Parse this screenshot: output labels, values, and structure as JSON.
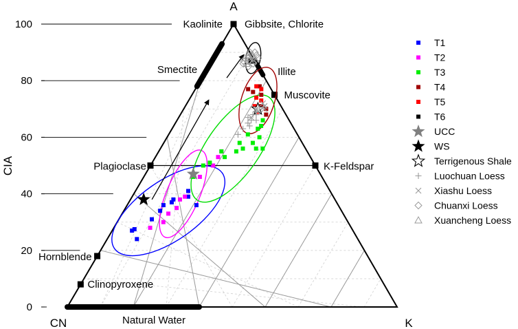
{
  "chart_data": {
    "type": "scatter",
    "subtype": "ternary",
    "vertices": {
      "top": "A",
      "left": "CN",
      "right": "K"
    },
    "ylabel": "CIA",
    "ylim": [
      0,
      100
    ],
    "yticks": [
      "0",
      "20",
      "40",
      "60",
      "80",
      "100"
    ],
    "legend_position": "right",
    "mineral_labels": [
      {
        "text": "Kaolinite",
        "cia": 100,
        "k": 0
      },
      {
        "text": "Gibbsite, Chlorite",
        "cia": 100,
        "k": 0
      },
      {
        "text": "Smectite",
        "cia": 84,
        "k": 0
      },
      {
        "text": "Illite",
        "cia": 84,
        "k": 16
      },
      {
        "text": "Muscovite",
        "cia": 75,
        "k": 25
      },
      {
        "text": "Plagioclase",
        "cia": 50,
        "k": 0
      },
      {
        "text": "K-Feldspar",
        "cia": 50,
        "k": 50
      },
      {
        "text": "Hornblende",
        "cia": 18,
        "k": 0
      },
      {
        "text": "Clinopyroxene",
        "cia": 8,
        "k": 0
      },
      {
        "text": "Natural Water",
        "cia": 0,
        "k": 0
      }
    ],
    "mineral_markers": [
      {
        "cia": 100,
        "k": 0
      },
      {
        "cia": 87,
        "k": 12
      },
      {
        "cia": 75,
        "k": 25
      },
      {
        "cia": 50,
        "k": 0
      },
      {
        "cia": 50,
        "k": 50
      },
      {
        "cia": 18,
        "k": 0
      },
      {
        "cia": 8,
        "k": 0
      }
    ],
    "series": [
      {
        "name": "T1",
        "color": "#0000ff",
        "marker": "square",
        "points": [
          [
            27,
            6
          ],
          [
            27.5,
            6.5
          ],
          [
            24,
            9
          ],
          [
            31,
            10
          ],
          [
            34,
            11
          ],
          [
            36,
            11
          ],
          [
            37,
            13
          ],
          [
            38,
            13
          ],
          [
            41,
            16
          ],
          [
            39,
            17
          ],
          [
            36,
            21
          ]
        ]
      },
      {
        "name": "T2",
        "color": "#ff00ff",
        "marker": "square",
        "points": [
          [
            28,
            11
          ],
          [
            30,
            14
          ],
          [
            33,
            14
          ],
          [
            35,
            15.5
          ],
          [
            38,
            15
          ],
          [
            39,
            16
          ],
          [
            46,
            17
          ],
          [
            50,
            19
          ],
          [
            53,
            19
          ],
          [
            55,
            19
          ]
        ]
      },
      {
        "name": "T3",
        "color": "#00ee00",
        "marker": "square",
        "points": [
          [
            46,
            15
          ],
          [
            50,
            16
          ],
          [
            51,
            17.5
          ],
          [
            55,
            19
          ],
          [
            53,
            21
          ],
          [
            55,
            23.5
          ],
          [
            58,
            23
          ],
          [
            61,
            24
          ],
          [
            56,
            25
          ],
          [
            58,
            27
          ],
          [
            56,
            29
          ],
          [
            56,
            31
          ],
          [
            60,
            28
          ],
          [
            63,
            26
          ],
          [
            64,
            26.5
          ],
          [
            66,
            26
          ]
        ]
      },
      {
        "name": "T4",
        "color": "#a00000",
        "marker": "square",
        "points": [
          [
            77,
            16
          ],
          [
            76,
            18
          ],
          [
            78,
            19
          ],
          [
            75,
            21
          ],
          [
            71,
            23
          ],
          [
            68,
            26
          ],
          [
            70,
            25
          ]
        ]
      },
      {
        "name": "T5",
        "color": "#ff0000",
        "marker": "square",
        "points": [
          [
            78,
            18
          ],
          [
            77,
            20
          ],
          [
            74,
            20
          ],
          [
            71,
            21
          ],
          [
            69,
            23
          ],
          [
            73,
            22
          ]
        ]
      },
      {
        "name": "T6",
        "color": "#000000",
        "marker": "square",
        "points": [
          [
            87,
            12
          ]
        ]
      },
      {
        "name": "UCC",
        "color": "#808080",
        "marker": "star",
        "points": [
          [
            47,
            14.5
          ]
        ]
      },
      {
        "name": "WS",
        "color": "#000000",
        "marker": "star",
        "points": [
          [
            38,
            4
          ]
        ]
      },
      {
        "name": "Terrigenous Shale",
        "color": "#000000",
        "marker": "star-open",
        "points": [
          [
            70,
            22.5
          ]
        ]
      },
      {
        "name": "Luochuan Loess",
        "color": "#9a9a9a",
        "marker": "plus",
        "points": [
          [
            61,
            21
          ],
          [
            63,
            21.5
          ],
          [
            65,
            22
          ],
          [
            66,
            22.5
          ],
          [
            67,
            21
          ],
          [
            68,
            22
          ],
          [
            68,
            23
          ],
          [
            69,
            22.5
          ],
          [
            70,
            23
          ],
          [
            64,
            23
          ],
          [
            66,
            24
          ]
        ]
      },
      {
        "name": "Xiashu Loess",
        "color": "#9a9a9a",
        "marker": "cross",
        "points": [
          [
            67,
            22
          ],
          [
            69,
            23
          ],
          [
            70,
            22
          ],
          [
            71,
            24
          ],
          [
            72,
            23
          ],
          [
            70,
            24.5
          ]
        ]
      },
      {
        "name": "Chuanxi Loess",
        "color": "#9a9a9a",
        "marker": "diamond",
        "points": [
          [
            86,
            10
          ],
          [
            87,
            11
          ],
          [
            88,
            10.5
          ],
          [
            89,
            11
          ],
          [
            88,
            12
          ],
          [
            86,
            13
          ],
          [
            87,
            13
          ],
          [
            89,
            12.5
          ],
          [
            90,
            11.5
          ],
          [
            85,
            12
          ],
          [
            87,
            9.5
          ],
          [
            88,
            13.5
          ],
          [
            90,
            10
          ]
        ]
      },
      {
        "name": "Xuancheng Loess",
        "color": "#9a9a9a",
        "marker": "triangle",
        "points": [
          [
            88,
            9.5
          ],
          [
            86,
            11
          ],
          [
            89,
            10
          ],
          [
            87,
            12.5
          ]
        ]
      }
    ],
    "ellipses": [
      {
        "series": "T1",
        "color": "#0000ff",
        "center": [
          34,
          13.5
        ],
        "rx_units": 21,
        "ry_units": 9,
        "tilt_deg": -35
      },
      {
        "series": "T2",
        "color": "#ff00ff",
        "center": [
          40,
          15
        ],
        "rx_units": 15,
        "ry_units": 5,
        "tilt_deg": -67
      },
      {
        "series": "T3",
        "color": "#00dd00",
        "center": [
          56,
          22
        ],
        "rx_units": 20,
        "ry_units": 8,
        "tilt_deg": -55
      },
      {
        "series": "T4",
        "color": "#a00000",
        "center": [
          73,
          21
        ],
        "rx_units": 11,
        "ry_units": 5,
        "tilt_deg": -72
      },
      {
        "series": "Chuanxi",
        "color": "#000000",
        "center": [
          88,
          12
        ],
        "rx_units": 5,
        "ry_units": 2.2,
        "tilt_deg": -80
      }
    ],
    "arrows": [
      {
        "from": [
          38,
          6.5
        ],
        "to": [
          73,
          6
        ]
      },
      {
        "from": [
          81,
          7.5
        ],
        "to": [
          89,
          8.5
        ]
      }
    ]
  }
}
